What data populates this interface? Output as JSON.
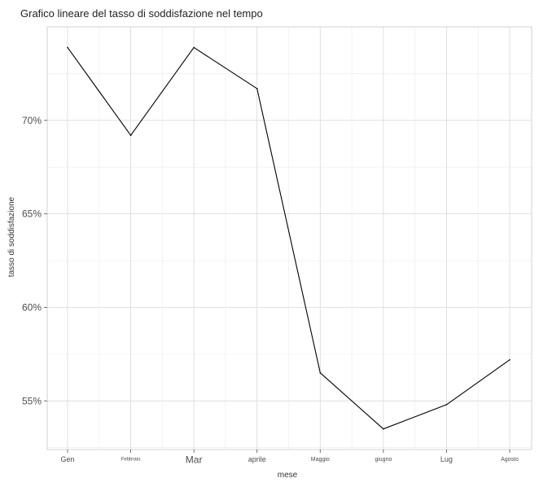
{
  "chart_data": {
    "type": "line",
    "title": "Grafico lineare del tasso di soddisfazione nel tempo",
    "xlabel": "mese",
    "ylabel": "tasso di soddisfazione",
    "categories": [
      "Gen",
      "Febbraio",
      "Mar",
      "aprile",
      "Maggio",
      "giugno",
      "Lug",
      "Agosto"
    ],
    "values": [
      73.9,
      69.2,
      73.9,
      71.7,
      56.5,
      53.5,
      54.8,
      57.2
    ],
    "y_ticks": [
      55,
      60,
      65,
      70
    ],
    "y_tick_labels": [
      "55%",
      "60%",
      "65%",
      "70%"
    ],
    "ylim": [
      52.4,
      75.0
    ],
    "grid": true,
    "line_color": "#000000"
  }
}
